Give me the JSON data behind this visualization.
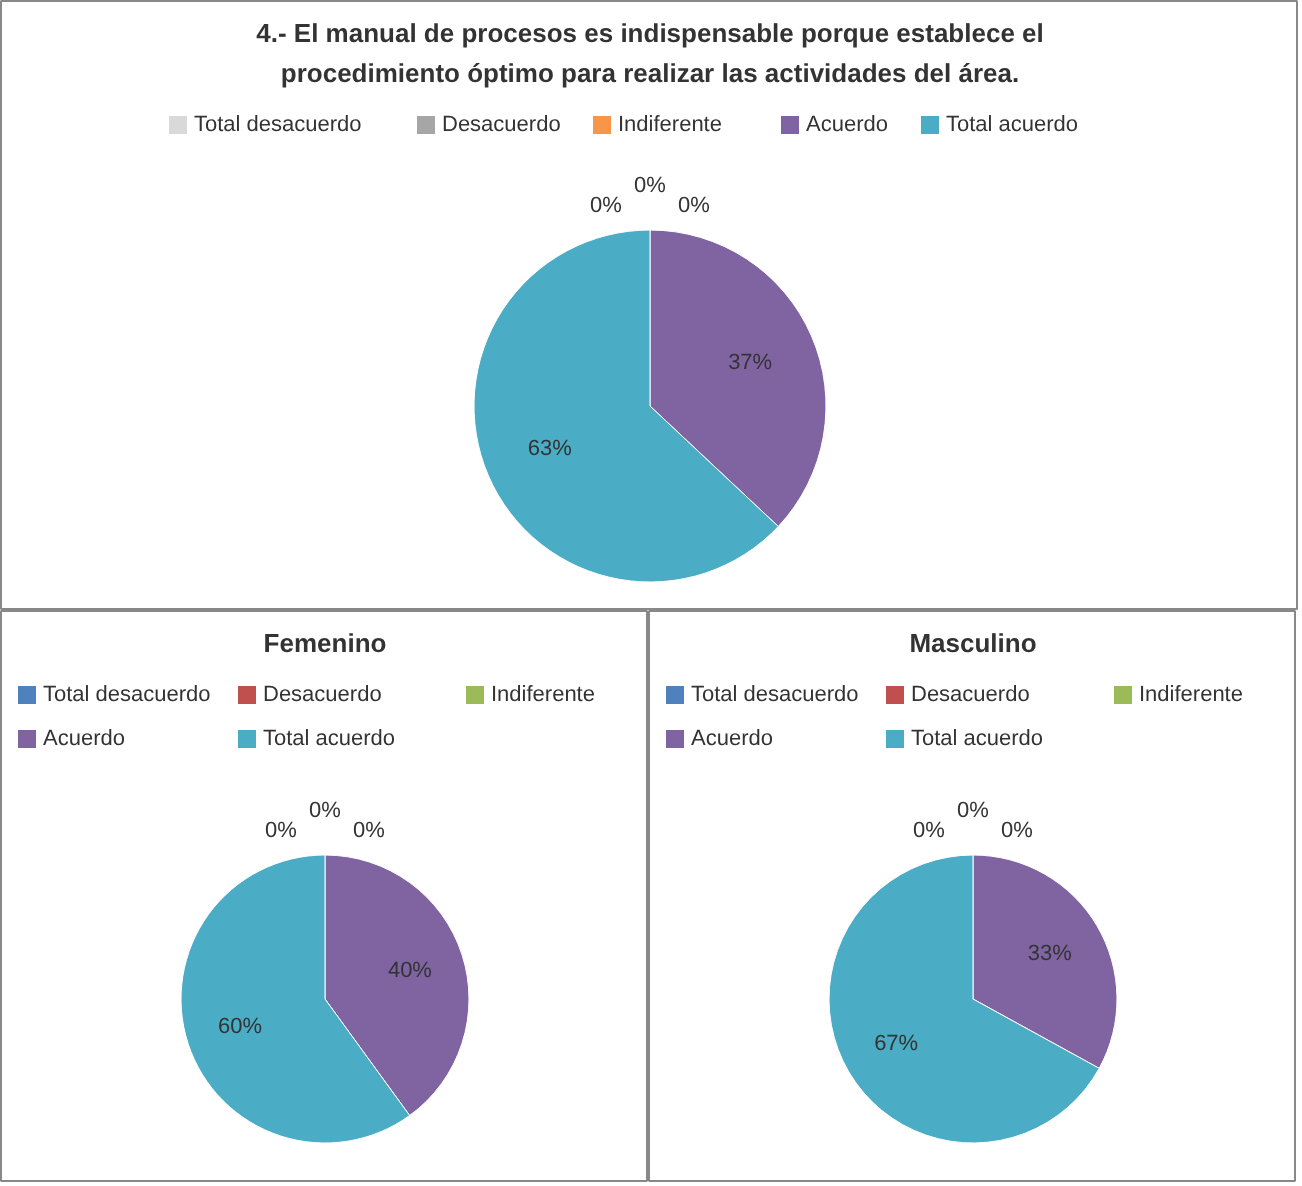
{
  "chart_data": [
    {
      "type": "pie",
      "title": "4.- El manual de procesos es indispensable porque establece el procedimiento óptimo para realizar las actividades del área.",
      "categories": [
        "Total desacuerdo",
        "Desacuerdo",
        "Indiferente",
        "Acuerdo",
        "Total acuerdo"
      ],
      "values": [
        0,
        0,
        0,
        37,
        63
      ],
      "colors": [
        "#d9d9d9",
        "#a6a6a6",
        "#f79646",
        "#8064a2",
        "#4bacc6"
      ],
      "legend": "top",
      "value_labels": [
        "0%",
        "0%",
        "0%",
        "37%",
        "63%"
      ]
    },
    {
      "type": "pie",
      "title": "Femenino",
      "categories": [
        "Total desacuerdo",
        "Desacuerdo",
        "Indiferente",
        "Acuerdo",
        "Total acuerdo"
      ],
      "values": [
        0,
        0,
        0,
        40,
        60
      ],
      "colors": [
        "#4f81bd",
        "#c0504d",
        "#9bbb59",
        "#8064a2",
        "#4bacc6"
      ],
      "legend": "top",
      "value_labels": [
        "0%",
        "0%",
        "0%",
        "40%",
        "60%"
      ]
    },
    {
      "type": "pie",
      "title": "Masculino",
      "categories": [
        "Total desacuerdo",
        "Desacuerdo",
        "Indiferente",
        "Acuerdo",
        "Total acuerdo"
      ],
      "values": [
        0,
        0,
        0,
        33,
        67
      ],
      "colors": [
        "#4f81bd",
        "#c0504d",
        "#9bbb59",
        "#8064a2",
        "#4bacc6"
      ],
      "legend": "top",
      "value_labels": [
        "0%",
        "0%",
        "0%",
        "33%",
        "67%"
      ]
    }
  ]
}
